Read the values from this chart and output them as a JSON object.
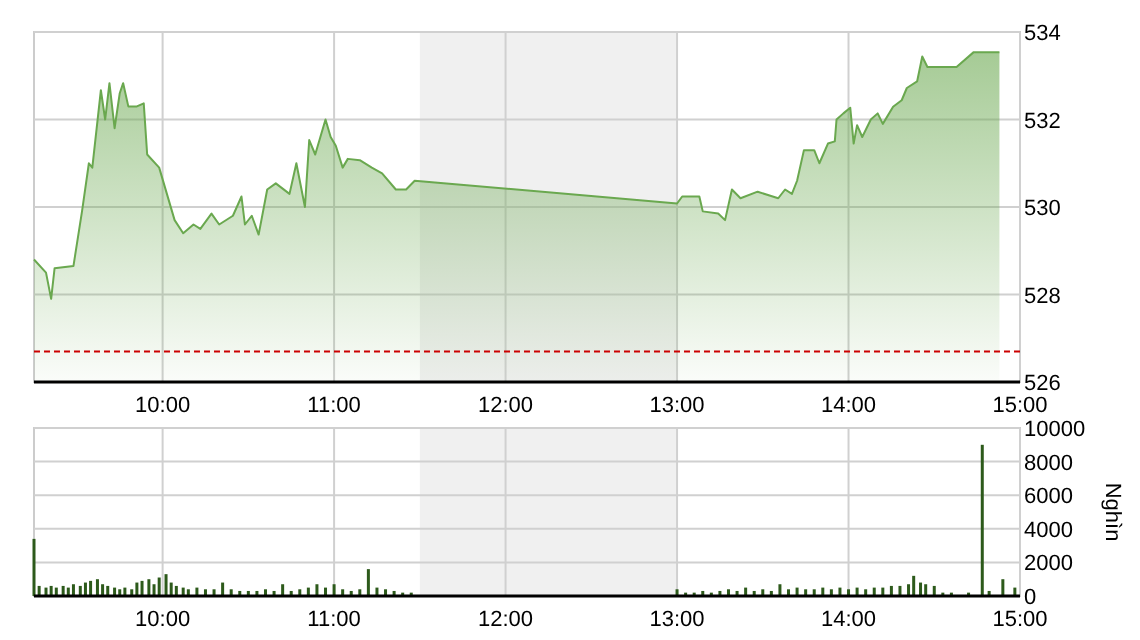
{
  "chart_data": [
    {
      "type": "area",
      "color": "#6aa84f",
      "xlim": [
        9.25,
        15
      ],
      "xticks": [
        {
          "value": 10,
          "label": "10:00"
        },
        {
          "value": 11,
          "label": "11:00"
        },
        {
          "value": 12,
          "label": "12:00"
        },
        {
          "value": 13,
          "label": "13:00"
        },
        {
          "value": 14,
          "label": "14:00"
        },
        {
          "value": 15,
          "label": "15:00"
        }
      ],
      "ylim": [
        526,
        534
      ],
      "yticks": [
        526,
        528,
        530,
        532,
        534
      ],
      "grid": true,
      "bands": [
        {
          "axis": "x",
          "from": 11.5,
          "to": 13,
          "color": "#f0f0f0"
        }
      ],
      "ref_lines": [
        {
          "axis": "y",
          "value": 526.7,
          "color": "#cc0000",
          "line_style": "dashed"
        }
      ],
      "x": [
        9.25,
        9.32,
        9.35,
        9.37,
        9.48,
        9.53,
        9.57,
        9.59,
        9.64,
        9.665,
        9.69,
        9.72,
        9.75,
        9.77,
        9.8,
        9.85,
        9.89,
        9.91,
        9.98,
        10.07,
        10.12,
        10.18,
        10.22,
        10.285,
        10.33,
        10.41,
        10.46,
        10.48,
        10.52,
        10.56,
        10.61,
        10.66,
        10.74,
        10.78,
        10.83,
        10.855,
        10.89,
        10.92,
        10.95,
        10.98,
        11.01,
        11.05,
        11.08,
        11.15,
        11.22,
        11.28,
        11.36,
        11.42,
        11.47,
        13.0,
        13.03,
        13.13,
        13.15,
        13.24,
        13.28,
        13.32,
        13.37,
        13.47,
        13.59,
        13.63,
        13.67,
        13.7,
        13.74,
        13.8,
        13.83,
        13.88,
        13.92,
        13.93,
        13.97,
        14.01,
        14.03,
        14.05,
        14.08,
        14.13,
        14.17,
        14.2,
        14.26,
        14.31,
        14.34,
        14.4,
        14.43,
        14.46,
        14.63,
        14.73,
        14.88
      ],
      "values": [
        528.8,
        528.5,
        527.9,
        528.6,
        528.65,
        529.9,
        531.0,
        530.9,
        532.67,
        532.0,
        532.83,
        531.8,
        532.6,
        532.83,
        532.3,
        532.3,
        532.37,
        531.2,
        530.9,
        529.7,
        529.4,
        529.6,
        529.5,
        529.85,
        529.6,
        529.8,
        530.24,
        529.6,
        529.8,
        529.37,
        530.4,
        530.54,
        530.3,
        531.0,
        530.0,
        531.53,
        531.2,
        531.6,
        532.0,
        531.6,
        531.4,
        530.9,
        531.1,
        531.07,
        530.9,
        530.77,
        530.4,
        530.4,
        530.6,
        530.08,
        530.24,
        530.24,
        529.9,
        529.85,
        529.7,
        530.4,
        530.2,
        530.35,
        530.2,
        530.4,
        530.3,
        530.6,
        531.3,
        531.3,
        531.0,
        531.45,
        531.5,
        532.0,
        532.14,
        532.27,
        531.45,
        531.87,
        531.6,
        532.0,
        532.14,
        531.9,
        532.29,
        532.44,
        532.72,
        532.87,
        533.44,
        533.2,
        533.2,
        533.54,
        533.54
      ]
    },
    {
      "type": "bar",
      "color": "#2d5a1b",
      "ylabel": "Nghìn",
      "xlim": [
        9.25,
        15
      ],
      "xticks": [
        {
          "value": 10,
          "label": "10:00"
        },
        {
          "value": 11,
          "label": "11:00"
        },
        {
          "value": 12,
          "label": "12:00"
        },
        {
          "value": 13,
          "label": "13:00"
        },
        {
          "value": 14,
          "label": "14:00"
        },
        {
          "value": 15,
          "label": "15:00"
        }
      ],
      "ylim": [
        0,
        10000
      ],
      "yticks": [
        0,
        2000,
        4000,
        6000,
        8000,
        10000
      ],
      "grid": true,
      "bands": [
        {
          "axis": "x",
          "from": 11.5,
          "to": 13,
          "color": "#f0f0f0"
        }
      ],
      "x": [
        9.25,
        9.28,
        9.32,
        9.35,
        9.38,
        9.42,
        9.45,
        9.48,
        9.52,
        9.55,
        9.58,
        9.62,
        9.65,
        9.68,
        9.72,
        9.75,
        9.78,
        9.82,
        9.85,
        9.88,
        9.92,
        9.95,
        9.98,
        10.02,
        10.05,
        10.08,
        10.12,
        10.15,
        10.2,
        10.25,
        10.3,
        10.35,
        10.4,
        10.45,
        10.5,
        10.55,
        10.6,
        10.65,
        10.7,
        10.75,
        10.8,
        10.85,
        10.9,
        10.95,
        11.0,
        11.05,
        11.1,
        11.15,
        11.2,
        11.25,
        11.3,
        11.35,
        11.4,
        11.45,
        13.0,
        13.05,
        13.1,
        13.15,
        13.2,
        13.25,
        13.3,
        13.35,
        13.4,
        13.45,
        13.5,
        13.55,
        13.6,
        13.65,
        13.7,
        13.75,
        13.8,
        13.85,
        13.9,
        13.95,
        14.0,
        14.05,
        14.1,
        14.15,
        14.2,
        14.25,
        14.3,
        14.35,
        14.38,
        14.42,
        14.45,
        14.5,
        14.55,
        14.6,
        14.7,
        14.78,
        14.82,
        14.9,
        14.97
      ],
      "values": [
        3400,
        600,
        500,
        600,
        500,
        600,
        500,
        700,
        600,
        800,
        900,
        1000,
        700,
        600,
        500,
        400,
        500,
        400,
        800,
        900,
        1000,
        700,
        1100,
        1300,
        800,
        600,
        500,
        400,
        500,
        400,
        400,
        800,
        400,
        300,
        300,
        300,
        400,
        300,
        700,
        300,
        400,
        500,
        700,
        500,
        700,
        400,
        300,
        400,
        1600,
        500,
        400,
        300,
        200,
        200,
        400,
        200,
        200,
        300,
        200,
        300,
        400,
        300,
        500,
        300,
        400,
        300,
        700,
        400,
        500,
        400,
        400,
        500,
        400,
        500,
        400,
        500,
        400,
        500,
        500,
        600,
        600,
        700,
        1200,
        800,
        700,
        600,
        200,
        200,
        200,
        9000,
        300,
        1000,
        500
      ]
    }
  ]
}
